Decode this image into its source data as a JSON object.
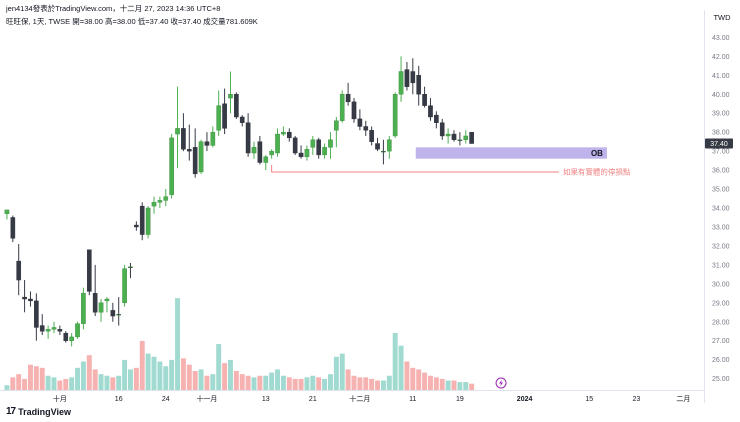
{
  "header": {
    "publisher_line": "jen4134發表於TradingView.com，十二月 27, 2023 14:36 UTC+8",
    "symbol_line": "旺旺保, 1天, TWSE  開=38.00  高=38.00  低=37.40  收=37.40  成交量781.609K"
  },
  "branding": {
    "logo_text": "TradingView",
    "logo_icon": "tradingview-logo-icon"
  },
  "colors": {
    "up": "#4caf50",
    "down": "#363a45",
    "doji": "#cfd6d2",
    "vol_up": "#8fd3c8",
    "vol_down": "#f4a3a3",
    "ob_zone": "#b5a6e8",
    "stop_line": "#f08080",
    "price_tag": "#363a45"
  },
  "chart_data": {
    "type": "candlestick",
    "currency": "TWD",
    "y_ticks": [
      "43.00",
      "42.00",
      "41.00",
      "40.00",
      "39.00",
      "38.00",
      "37.00",
      "36.00",
      "35.00",
      "34.00",
      "33.00",
      "32.00",
      "31.00",
      "30.00",
      "29.00",
      "28.00",
      "27.00",
      "26.00",
      "25.00"
    ],
    "ylim": [
      24.4,
      43.6
    ],
    "x_labels": [
      {
        "label": "十月",
        "i": 9
      },
      {
        "label": "16",
        "i": 19
      },
      {
        "label": "24",
        "i": 27
      },
      {
        "label": "十一月",
        "i": 34
      },
      {
        "label": "13",
        "i": 44
      },
      {
        "label": "21",
        "i": 52
      },
      {
        "label": "十二月",
        "i": 60
      },
      {
        "label": "11",
        "i": 69
      },
      {
        "label": "19",
        "i": 77
      },
      {
        "label": "2024",
        "i": 88
      },
      {
        "label": "15",
        "i": 99
      },
      {
        "label": "23",
        "i": 107
      },
      {
        "label": "二月",
        "i": 115
      }
    ],
    "x_total_slots": 119,
    "last_price_label": "37.40",
    "candles": [
      {
        "o": 33.7,
        "h": 33.9,
        "l": 33.4,
        "c": 33.9,
        "v": 0.3
      },
      {
        "o": 33.5,
        "h": 33.6,
        "l": 32.2,
        "c": 32.4,
        "v": 0.8
      },
      {
        "o": 31.2,
        "h": 32.1,
        "l": 29.4,
        "c": 30.2,
        "v": 1.0
      },
      {
        "o": 29.3,
        "h": 30.2,
        "l": 28.5,
        "c": 29.2,
        "v": 0.7
      },
      {
        "o": 29.2,
        "h": 29.6,
        "l": 28.8,
        "c": 29.1,
        "v": 1.6
      },
      {
        "o": 29.1,
        "h": 29.5,
        "l": 27.0,
        "c": 27.7,
        "v": 1.5
      },
      {
        "o": 27.8,
        "h": 28.4,
        "l": 27.3,
        "c": 27.5,
        "v": 1.4
      },
      {
        "o": 27.5,
        "h": 27.8,
        "l": 27.1,
        "c": 27.6,
        "v": 0.9
      },
      {
        "o": 27.6,
        "h": 28.0,
        "l": 27.4,
        "c": 27.7,
        "v": 0.8
      },
      {
        "o": 27.6,
        "h": 27.8,
        "l": 27.3,
        "c": 27.5,
        "v": 0.6
      },
      {
        "o": 27.4,
        "h": 27.5,
        "l": 26.9,
        "c": 27.0,
        "v": 0.7
      },
      {
        "o": 27.0,
        "h": 27.4,
        "l": 26.7,
        "c": 27.2,
        "v": 0.8
      },
      {
        "o": 27.2,
        "h": 28.0,
        "l": 27.1,
        "c": 27.9,
        "v": 1.4
      },
      {
        "o": 27.9,
        "h": 29.8,
        "l": 27.6,
        "c": 29.5,
        "v": 1.8
      },
      {
        "o": 31.8,
        "h": 31.8,
        "l": 29.4,
        "c": 29.6,
        "v": 2.2
      },
      {
        "o": 29.5,
        "h": 31.0,
        "l": 28.3,
        "c": 28.5,
        "v": 1.3
      },
      {
        "o": 28.5,
        "h": 29.2,
        "l": 28.0,
        "c": 29.0,
        "v": 1.0
      },
      {
        "o": 29.1,
        "h": 29.3,
        "l": 28.5,
        "c": 29.2,
        "v": 0.9
      },
      {
        "o": 28.6,
        "h": 29.0,
        "l": 28.0,
        "c": 28.3,
        "v": 0.8
      },
      {
        "o": 28.4,
        "h": 29.3,
        "l": 27.8,
        "c": 28.4,
        "v": 0.9
      },
      {
        "o": 29.0,
        "h": 31.0,
        "l": 28.8,
        "c": 30.8,
        "v": 1.9
      },
      {
        "o": 30.9,
        "h": 31.1,
        "l": 30.3,
        "c": 30.9,
        "v": 1.3
      },
      {
        "o": 33.1,
        "h": 33.3,
        "l": 32.8,
        "c": 33.0,
        "v": 1.4
      },
      {
        "o": 34.1,
        "h": 34.3,
        "l": 32.3,
        "c": 32.6,
        "v": 3.1
      },
      {
        "o": 32.6,
        "h": 34.1,
        "l": 32.4,
        "c": 34.0,
        "v": 2.3
      },
      {
        "o": 34.1,
        "h": 34.6,
        "l": 33.7,
        "c": 34.3,
        "v": 2.1
      },
      {
        "o": 34.3,
        "h": 34.6,
        "l": 34.0,
        "c": 34.4,
        "v": 1.8
      },
      {
        "o": 34.4,
        "h": 35.0,
        "l": 34.1,
        "c": 34.6,
        "v": 1.5
      },
      {
        "o": 34.7,
        "h": 37.9,
        "l": 34.5,
        "c": 37.7,
        "v": 1.9
      },
      {
        "o": 37.9,
        "h": 40.4,
        "l": 36.1,
        "c": 38.2,
        "v": 5.8
      },
      {
        "o": 38.2,
        "h": 39.0,
        "l": 37.0,
        "c": 37.1,
        "v": 2.0
      },
      {
        "o": 37.1,
        "h": 38.4,
        "l": 36.5,
        "c": 37.0,
        "v": 1.6
      },
      {
        "o": 37.2,
        "h": 38.2,
        "l": 35.6,
        "c": 35.8,
        "v": 1.2
      },
      {
        "o": 35.9,
        "h": 37.6,
        "l": 35.8,
        "c": 37.5,
        "v": 1.3
      },
      {
        "o": 37.5,
        "h": 38.0,
        "l": 37.0,
        "c": 37.3,
        "v": 0.9
      },
      {
        "o": 37.3,
        "h": 38.3,
        "l": 37.2,
        "c": 38.0,
        "v": 1.0
      },
      {
        "o": 38.1,
        "h": 40.2,
        "l": 37.8,
        "c": 39.4,
        "v": 2.9
      },
      {
        "o": 39.5,
        "h": 40.3,
        "l": 37.9,
        "c": 38.2,
        "v": 1.7
      },
      {
        "o": 39.8,
        "h": 41.2,
        "l": 39.0,
        "c": 40.0,
        "v": 1.9
      },
      {
        "o": 40.0,
        "h": 40.1,
        "l": 38.7,
        "c": 38.8,
        "v": 1.2
      },
      {
        "o": 38.8,
        "h": 38.9,
        "l": 38.3,
        "c": 38.5,
        "v": 1.0
      },
      {
        "o": 38.5,
        "h": 39.0,
        "l": 36.7,
        "c": 36.9,
        "v": 0.9
      },
      {
        "o": 36.9,
        "h": 37.5,
        "l": 36.6,
        "c": 37.2,
        "v": 0.8
      },
      {
        "o": 37.5,
        "h": 37.8,
        "l": 36.3,
        "c": 36.4,
        "v": 0.9
      },
      {
        "o": 36.4,
        "h": 36.8,
        "l": 36.0,
        "c": 36.7,
        "v": 0.9
      },
      {
        "o": 36.8,
        "h": 37.1,
        "l": 36.6,
        "c": 37.0,
        "v": 1.1
      },
      {
        "o": 36.9,
        "h": 38.2,
        "l": 36.7,
        "c": 37.9,
        "v": 1.3
      },
      {
        "o": 37.9,
        "h": 38.3,
        "l": 37.8,
        "c": 38.0,
        "v": 0.9
      },
      {
        "o": 38.0,
        "h": 38.2,
        "l": 37.5,
        "c": 37.7,
        "v": 0.8
      },
      {
        "o": 37.7,
        "h": 37.8,
        "l": 36.8,
        "c": 36.9,
        "v": 0.7
      },
      {
        "o": 36.9,
        "h": 37.3,
        "l": 36.6,
        "c": 36.7,
        "v": 0.7
      },
      {
        "o": 36.7,
        "h": 37.3,
        "l": 36.5,
        "c": 37.1,
        "v": 0.8
      },
      {
        "o": 37.2,
        "h": 37.8,
        "l": 36.8,
        "c": 37.6,
        "v": 0.9
      },
      {
        "o": 37.6,
        "h": 37.7,
        "l": 36.6,
        "c": 36.8,
        "v": 0.8
      },
      {
        "o": 36.8,
        "h": 37.4,
        "l": 36.6,
        "c": 37.2,
        "v": 0.7
      },
      {
        "o": 37.2,
        "h": 38.0,
        "l": 36.6,
        "c": 37.6,
        "v": 1.0
      },
      {
        "o": 38.1,
        "h": 38.8,
        "l": 37.2,
        "c": 38.6,
        "v": 2.1
      },
      {
        "o": 38.6,
        "h": 40.2,
        "l": 38.5,
        "c": 40.0,
        "v": 2.3
      },
      {
        "o": 40.0,
        "h": 40.6,
        "l": 39.4,
        "c": 39.6,
        "v": 1.3
      },
      {
        "o": 39.6,
        "h": 39.8,
        "l": 38.5,
        "c": 38.7,
        "v": 0.9
      },
      {
        "o": 38.7,
        "h": 39.2,
        "l": 38.1,
        "c": 38.3,
        "v": 0.8
      },
      {
        "o": 38.3,
        "h": 38.6,
        "l": 37.8,
        "c": 38.1,
        "v": 0.8
      },
      {
        "o": 38.1,
        "h": 38.3,
        "l": 37.3,
        "c": 37.5,
        "v": 0.7
      },
      {
        "o": 37.4,
        "h": 37.7,
        "l": 37.0,
        "c": 37.1,
        "v": 0.6
      },
      {
        "o": 37.0,
        "h": 37.6,
        "l": 36.3,
        "c": 37.0,
        "v": 0.6
      },
      {
        "o": 37.0,
        "h": 37.8,
        "l": 36.6,
        "c": 37.6,
        "v": 0.9
      },
      {
        "o": 37.8,
        "h": 40.1,
        "l": 37.7,
        "c": 40.0,
        "v": 3.6
      },
      {
        "o": 40.0,
        "h": 42.0,
        "l": 39.6,
        "c": 41.2,
        "v": 2.8
      },
      {
        "o": 41.3,
        "h": 41.7,
        "l": 40.2,
        "c": 40.4,
        "v": 1.8
      },
      {
        "o": 41.2,
        "h": 41.9,
        "l": 40.0,
        "c": 40.6,
        "v": 1.4
      },
      {
        "o": 41.0,
        "h": 41.5,
        "l": 39.4,
        "c": 40.0,
        "v": 1.3
      },
      {
        "o": 40.0,
        "h": 40.4,
        "l": 39.3,
        "c": 39.4,
        "v": 1.1
      },
      {
        "o": 39.4,
        "h": 39.8,
        "l": 38.6,
        "c": 38.8,
        "v": 0.9
      },
      {
        "o": 38.9,
        "h": 39.1,
        "l": 38.2,
        "c": 38.5,
        "v": 0.8
      },
      {
        "o": 38.5,
        "h": 38.7,
        "l": 37.6,
        "c": 37.8,
        "v": 0.7
      },
      {
        "o": 37.8,
        "h": 38.2,
        "l": 37.4,
        "c": 37.9,
        "v": 0.6
      },
      {
        "o": 37.9,
        "h": 38.1,
        "l": 37.5,
        "c": 37.6,
        "v": 0.6
      },
      {
        "o": 37.6,
        "h": 38.0,
        "l": 37.3,
        "c": 37.6,
        "v": 0.5
      },
      {
        "o": 37.6,
        "h": 38.1,
        "l": 37.4,
        "c": 37.8,
        "v": 0.5
      },
      {
        "o": 38.0,
        "h": 38.0,
        "l": 37.4,
        "c": 37.4,
        "v": 0.4
      }
    ],
    "annotations": {
      "ob_zone": {
        "label": "OB",
        "from_i": 70,
        "to_i": 102,
        "top": 37.2,
        "bottom": 36.6
      },
      "stop_line": {
        "label": "如果有實體的停損點",
        "from_i": 45,
        "to_i": 102,
        "price": 35.9
      },
      "lightning_icon": "lightning-icon"
    }
  }
}
